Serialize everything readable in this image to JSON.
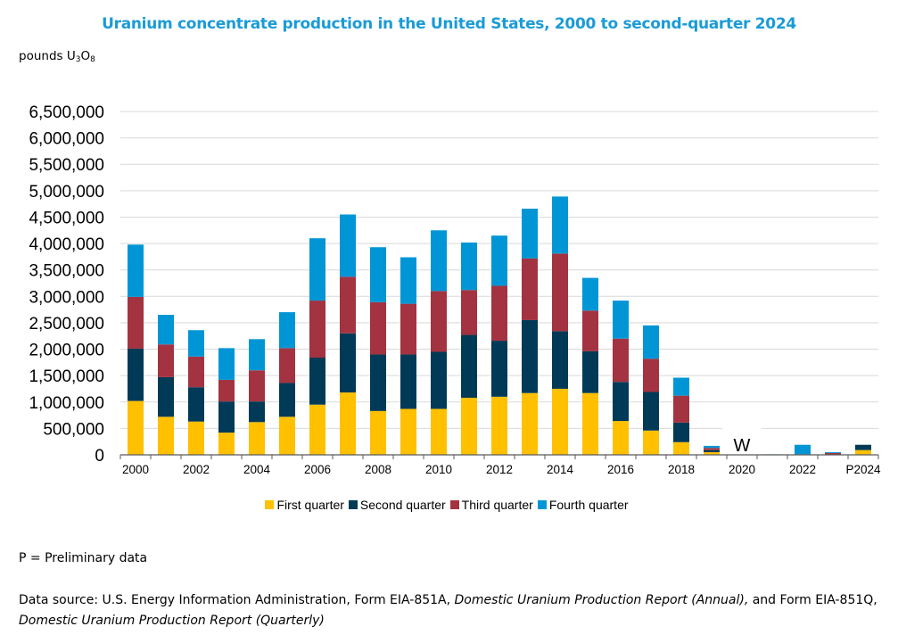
{
  "chart_data": {
    "type": "bar",
    "stacked": true,
    "title": "Uranium concentrate production in the United States, 2000 to second-quarter 2024",
    "ylabel_prefix": "pounds U",
    "ylabel_sub1": "3",
    "ylabel_mid": "O",
    "ylabel_sub2": "8",
    "ylabel": "pounds U3O8",
    "xlabel": "",
    "ylim": [
      0,
      6500000
    ],
    "yticks": [
      0,
      500000,
      1000000,
      1500000,
      2000000,
      2500000,
      3000000,
      3500000,
      4000000,
      4500000,
      5000000,
      5500000,
      6000000,
      6500000
    ],
    "ytick_labels": [
      "0",
      "500,000",
      "1,000,000",
      "1,500,000",
      "2,000,000",
      "2,500,000",
      "3,000,000",
      "3,500,000",
      "4,000,000",
      "4,500,000",
      "5,000,000",
      "5,500,000",
      "6,000,000",
      "6,500,000"
    ],
    "grid": true,
    "categories": [
      "2000",
      "2001",
      "2002",
      "2003",
      "2004",
      "2005",
      "2006",
      "2007",
      "2008",
      "2009",
      "2010",
      "2011",
      "2012",
      "2013",
      "2014",
      "2015",
      "2016",
      "2017",
      "2018",
      "2019",
      "2020",
      "2021",
      "2022",
      "2023",
      "P2024"
    ],
    "xtick_labels": [
      "2000",
      "",
      "2002",
      "",
      "2004",
      "",
      "2006",
      "",
      "2008",
      "",
      "2010",
      "",
      "2012",
      "",
      "2014",
      "",
      "2016",
      "",
      "2018",
      "",
      "2020",
      "",
      "2022",
      "",
      "P2024"
    ],
    "series": [
      {
        "name": "First quarter",
        "color": "#ffc000",
        "values": [
          1020000,
          720000,
          630000,
          420000,
          620000,
          720000,
          950000,
          1180000,
          830000,
          870000,
          870000,
          1080000,
          1100000,
          1170000,
          1250000,
          1170000,
          640000,
          460000,
          240000,
          50000,
          null,
          0,
          0,
          0,
          90000
        ]
      },
      {
        "name": "Second quarter",
        "color": "#003a57",
        "values": [
          990000,
          750000,
          650000,
          590000,
          390000,
          640000,
          890000,
          1120000,
          1070000,
          1030000,
          1080000,
          1190000,
          1060000,
          1380000,
          1090000,
          790000,
          740000,
          730000,
          370000,
          40000,
          null,
          0,
          0,
          0,
          100000
        ]
      },
      {
        "name": "Third quarter",
        "color": "#a33340",
        "values": [
          980000,
          620000,
          580000,
          410000,
          590000,
          660000,
          1080000,
          1070000,
          990000,
          960000,
          1150000,
          850000,
          1040000,
          1170000,
          1470000,
          770000,
          820000,
          630000,
          510000,
          40000,
          null,
          0,
          10000,
          35000,
          0
        ]
      },
      {
        "name": "Fourth quarter",
        "color": "#0096d6",
        "values": [
          990000,
          560000,
          500000,
          600000,
          590000,
          680000,
          1180000,
          1180000,
          1040000,
          880000,
          1150000,
          900000,
          950000,
          940000,
          1080000,
          620000,
          720000,
          630000,
          340000,
          40000,
          null,
          10000,
          180000,
          15000,
          0
        ]
      }
    ],
    "annotations": [
      {
        "category": "2020",
        "text": "W"
      }
    ],
    "legend_position": "bottom-center"
  },
  "note": "P = Preliminary data",
  "source": {
    "prefix": "Data source: U.S. Energy Information Administration, Form EIA-851A, ",
    "italic1": "Domestic Uranium Production Report (Annual),",
    "middle": " and Form EIA-851Q, ",
    "italic2": "Domestic Uranium Production Report (Quarterly)"
  }
}
